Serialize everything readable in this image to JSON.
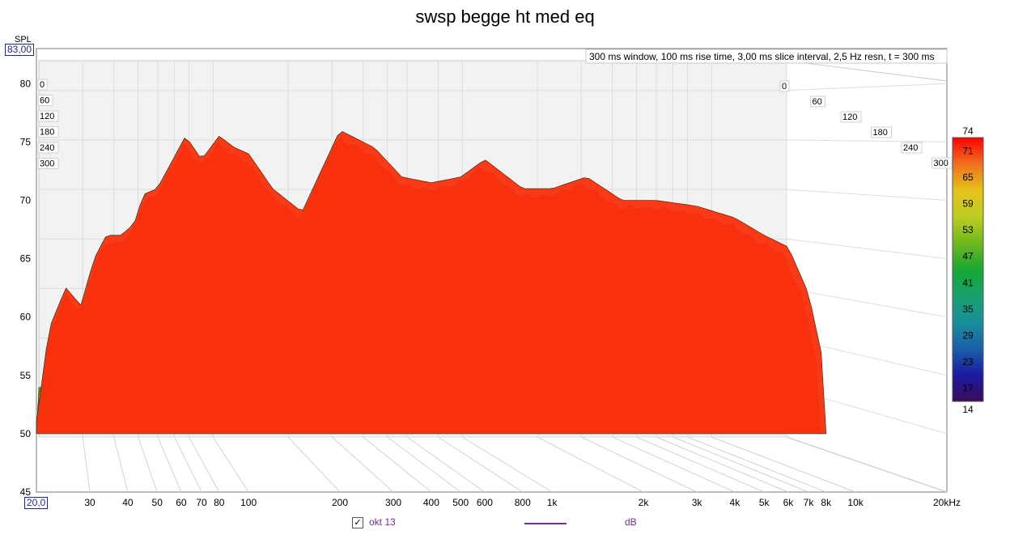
{
  "chart_data": {
    "type": "waterfall",
    "title": "swsp begge ht med eq",
    "annotation": "300 ms window, 100 ms rise time, 3,00 ms slice interval, 2,5 Hz resn, t = 300 ms",
    "y_unit_label": "SPL",
    "y_max_input": "83,00",
    "x_min_input": "20,0",
    "ylim": [
      45,
      83
    ],
    "yticks": [
      "80",
      "75",
      "70",
      "65",
      "60",
      "55",
      "50",
      "45"
    ],
    "xlim_hz": [
      20,
      20000
    ],
    "x_scale": "log",
    "xticks": [
      {
        "hz": 30,
        "label": "30"
      },
      {
        "hz": 40,
        "label": "40"
      },
      {
        "hz": 50,
        "label": "50"
      },
      {
        "hz": 60,
        "label": "60"
      },
      {
        "hz": 70,
        "label": "70"
      },
      {
        "hz": 80,
        "label": "80"
      },
      {
        "hz": 100,
        "label": "100"
      },
      {
        "hz": 200,
        "label": "200"
      },
      {
        "hz": 300,
        "label": "300"
      },
      {
        "hz": 400,
        "label": "400"
      },
      {
        "hz": 500,
        "label": "500"
      },
      {
        "hz": 600,
        "label": "600"
      },
      {
        "hz": 800,
        "label": "800"
      },
      {
        "hz": 1000,
        "label": "1k"
      },
      {
        "hz": 2000,
        "label": "2k"
      },
      {
        "hz": 3000,
        "label": "3k"
      },
      {
        "hz": 4000,
        "label": "4k"
      },
      {
        "hz": 5000,
        "label": "5k"
      },
      {
        "hz": 6000,
        "label": "6k"
      },
      {
        "hz": 7000,
        "label": "7k"
      },
      {
        "hz": 8000,
        "label": "8k"
      },
      {
        "hz": 10000,
        "label": "10k"
      },
      {
        "hz": 20000,
        "label": "20kHz"
      }
    ],
    "time_ticks_ms": [
      "0",
      "60",
      "120",
      "180",
      "240",
      "300"
    ],
    "colorbar_ticks": [
      "74",
      "71",
      "65",
      "59",
      "53",
      "47",
      "41",
      "35",
      "29",
      "23",
      "17",
      "14"
    ],
    "colorbar_range": [
      14,
      74
    ],
    "front_slice_db": [
      {
        "hz": 20,
        "db": 51
      },
      {
        "hz": 22,
        "db": 59
      },
      {
        "hz": 25,
        "db": 62.5
      },
      {
        "hz": 28,
        "db": 61
      },
      {
        "hz": 31,
        "db": 65
      },
      {
        "hz": 34,
        "db": 67
      },
      {
        "hz": 38,
        "db": 67
      },
      {
        "hz": 42,
        "db": 68
      },
      {
        "hz": 45,
        "db": 70.5
      },
      {
        "hz": 50,
        "db": 71
      },
      {
        "hz": 55,
        "db": 73
      },
      {
        "hz": 62,
        "db": 75.5
      },
      {
        "hz": 70,
        "db": 73.5
      },
      {
        "hz": 80,
        "db": 75.5
      },
      {
        "hz": 90,
        "db": 74.5
      },
      {
        "hz": 100,
        "db": 74
      },
      {
        "hz": 120,
        "db": 71
      },
      {
        "hz": 150,
        "db": 69
      },
      {
        "hz": 200,
        "db": 76
      },
      {
        "hz": 260,
        "db": 74.5
      },
      {
        "hz": 320,
        "db": 72
      },
      {
        "hz": 400,
        "db": 71.5
      },
      {
        "hz": 500,
        "db": 72
      },
      {
        "hz": 600,
        "db": 73.5
      },
      {
        "hz": 800,
        "db": 71
      },
      {
        "hz": 1000,
        "db": 71
      },
      {
        "hz": 1300,
        "db": 72
      },
      {
        "hz": 1700,
        "db": 70
      },
      {
        "hz": 2200,
        "db": 70
      },
      {
        "hz": 3000,
        "db": 69.5
      },
      {
        "hz": 4000,
        "db": 68.5
      },
      {
        "hz": 5000,
        "db": 67
      },
      {
        "hz": 6000,
        "db": 66
      },
      {
        "hz": 7000,
        "db": 62
      },
      {
        "hz": 8000,
        "db": 55
      }
    ],
    "floor_db": 50,
    "grid": true,
    "colors": {
      "axis_input_border": "#1e2a8a",
      "legend": "#7a2a9a",
      "colormap": [
        "#ff0000",
        "#f07020",
        "#e6c21a",
        "#bccd22",
        "#6fb81e",
        "#18a832",
        "#1aa06e",
        "#1a8f9a",
        "#1a5fa8",
        "#1a1aa0",
        "#3a0c5a"
      ]
    }
  },
  "legend": {
    "checkbox_label": "okt 13",
    "unit": "dB",
    "checked_glyph": "✓"
  }
}
